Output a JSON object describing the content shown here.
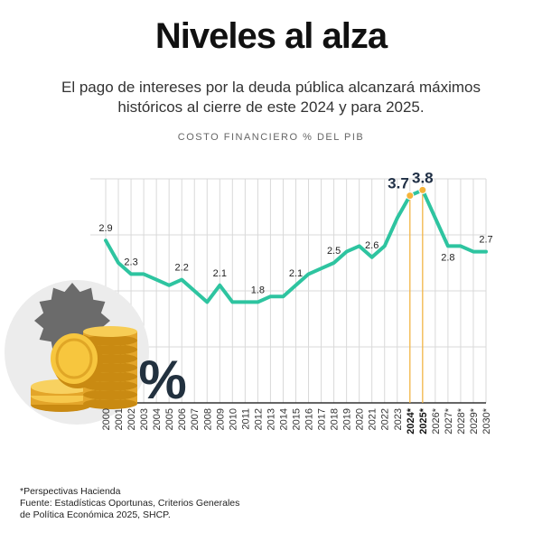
{
  "title": "Niveles al alza",
  "subtitle": "El pago de intereses por la deuda pública alcanzará máximos históricos al cierre de este 2024 y para 2025.",
  "ylabel": "COSTO FINANCIERO % DEL PIB",
  "footnote": "*Perspectivas Hacienda",
  "source_line1": "Fuente: Estadísticas Oportunas, Criterios Generales",
  "source_line2": "de Política Económica 2025, SHCP.",
  "percent_symbol": "%",
  "illustration": "coins-stack-with-percent-badge",
  "colors": {
    "line": "#2ec4a0",
    "highlight": "#f5b33a",
    "text": "#222222",
    "grid": "#d9d9d9"
  },
  "chart_data": {
    "type": "line",
    "title": "Niveles al alza",
    "ylabel": "COSTO FINANCIERO % DEL PIB",
    "grid": true,
    "ylim": [
      0,
      4
    ],
    "x": [
      "2000",
      "2001",
      "2002",
      "2003",
      "2004",
      "2005",
      "2006",
      "2007",
      "2008",
      "2009",
      "2010",
      "2011",
      "2012",
      "2013",
      "2014",
      "2015",
      "2016",
      "2017",
      "2018",
      "2019",
      "2020",
      "2021",
      "2022",
      "2023",
      "2024*",
      "2025*",
      "2026*",
      "2027*",
      "2028*",
      "2029*",
      "2030*"
    ],
    "values": [
      2.9,
      2.5,
      2.3,
      2.3,
      2.2,
      2.1,
      2.2,
      2.0,
      1.8,
      2.1,
      1.8,
      1.8,
      1.8,
      1.9,
      1.9,
      2.1,
      2.3,
      2.4,
      2.5,
      2.7,
      2.8,
      2.6,
      2.8,
      3.3,
      3.7,
      3.8,
      3.3,
      2.8,
      2.8,
      2.7,
      2.7
    ],
    "data_labels": [
      {
        "x": "2000",
        "label": "2.9"
      },
      {
        "x": "2002",
        "label": "2.3"
      },
      {
        "x": "2006",
        "label": "2.2"
      },
      {
        "x": "2009",
        "label": "2.1"
      },
      {
        "x": "2012",
        "label": "1.8"
      },
      {
        "x": "2015",
        "label": "2.1"
      },
      {
        "x": "2018",
        "label": "2.5"
      },
      {
        "x": "2021",
        "label": "2.6"
      },
      {
        "x": "2024*",
        "label": "3.7",
        "highlight": true
      },
      {
        "x": "2025*",
        "label": "3.8",
        "highlight": true
      },
      {
        "x": "2027*",
        "label": "2.8"
      },
      {
        "x": "2030*",
        "label": "2.7"
      }
    ],
    "highlight_x": [
      "2024*",
      "2025*"
    ]
  }
}
